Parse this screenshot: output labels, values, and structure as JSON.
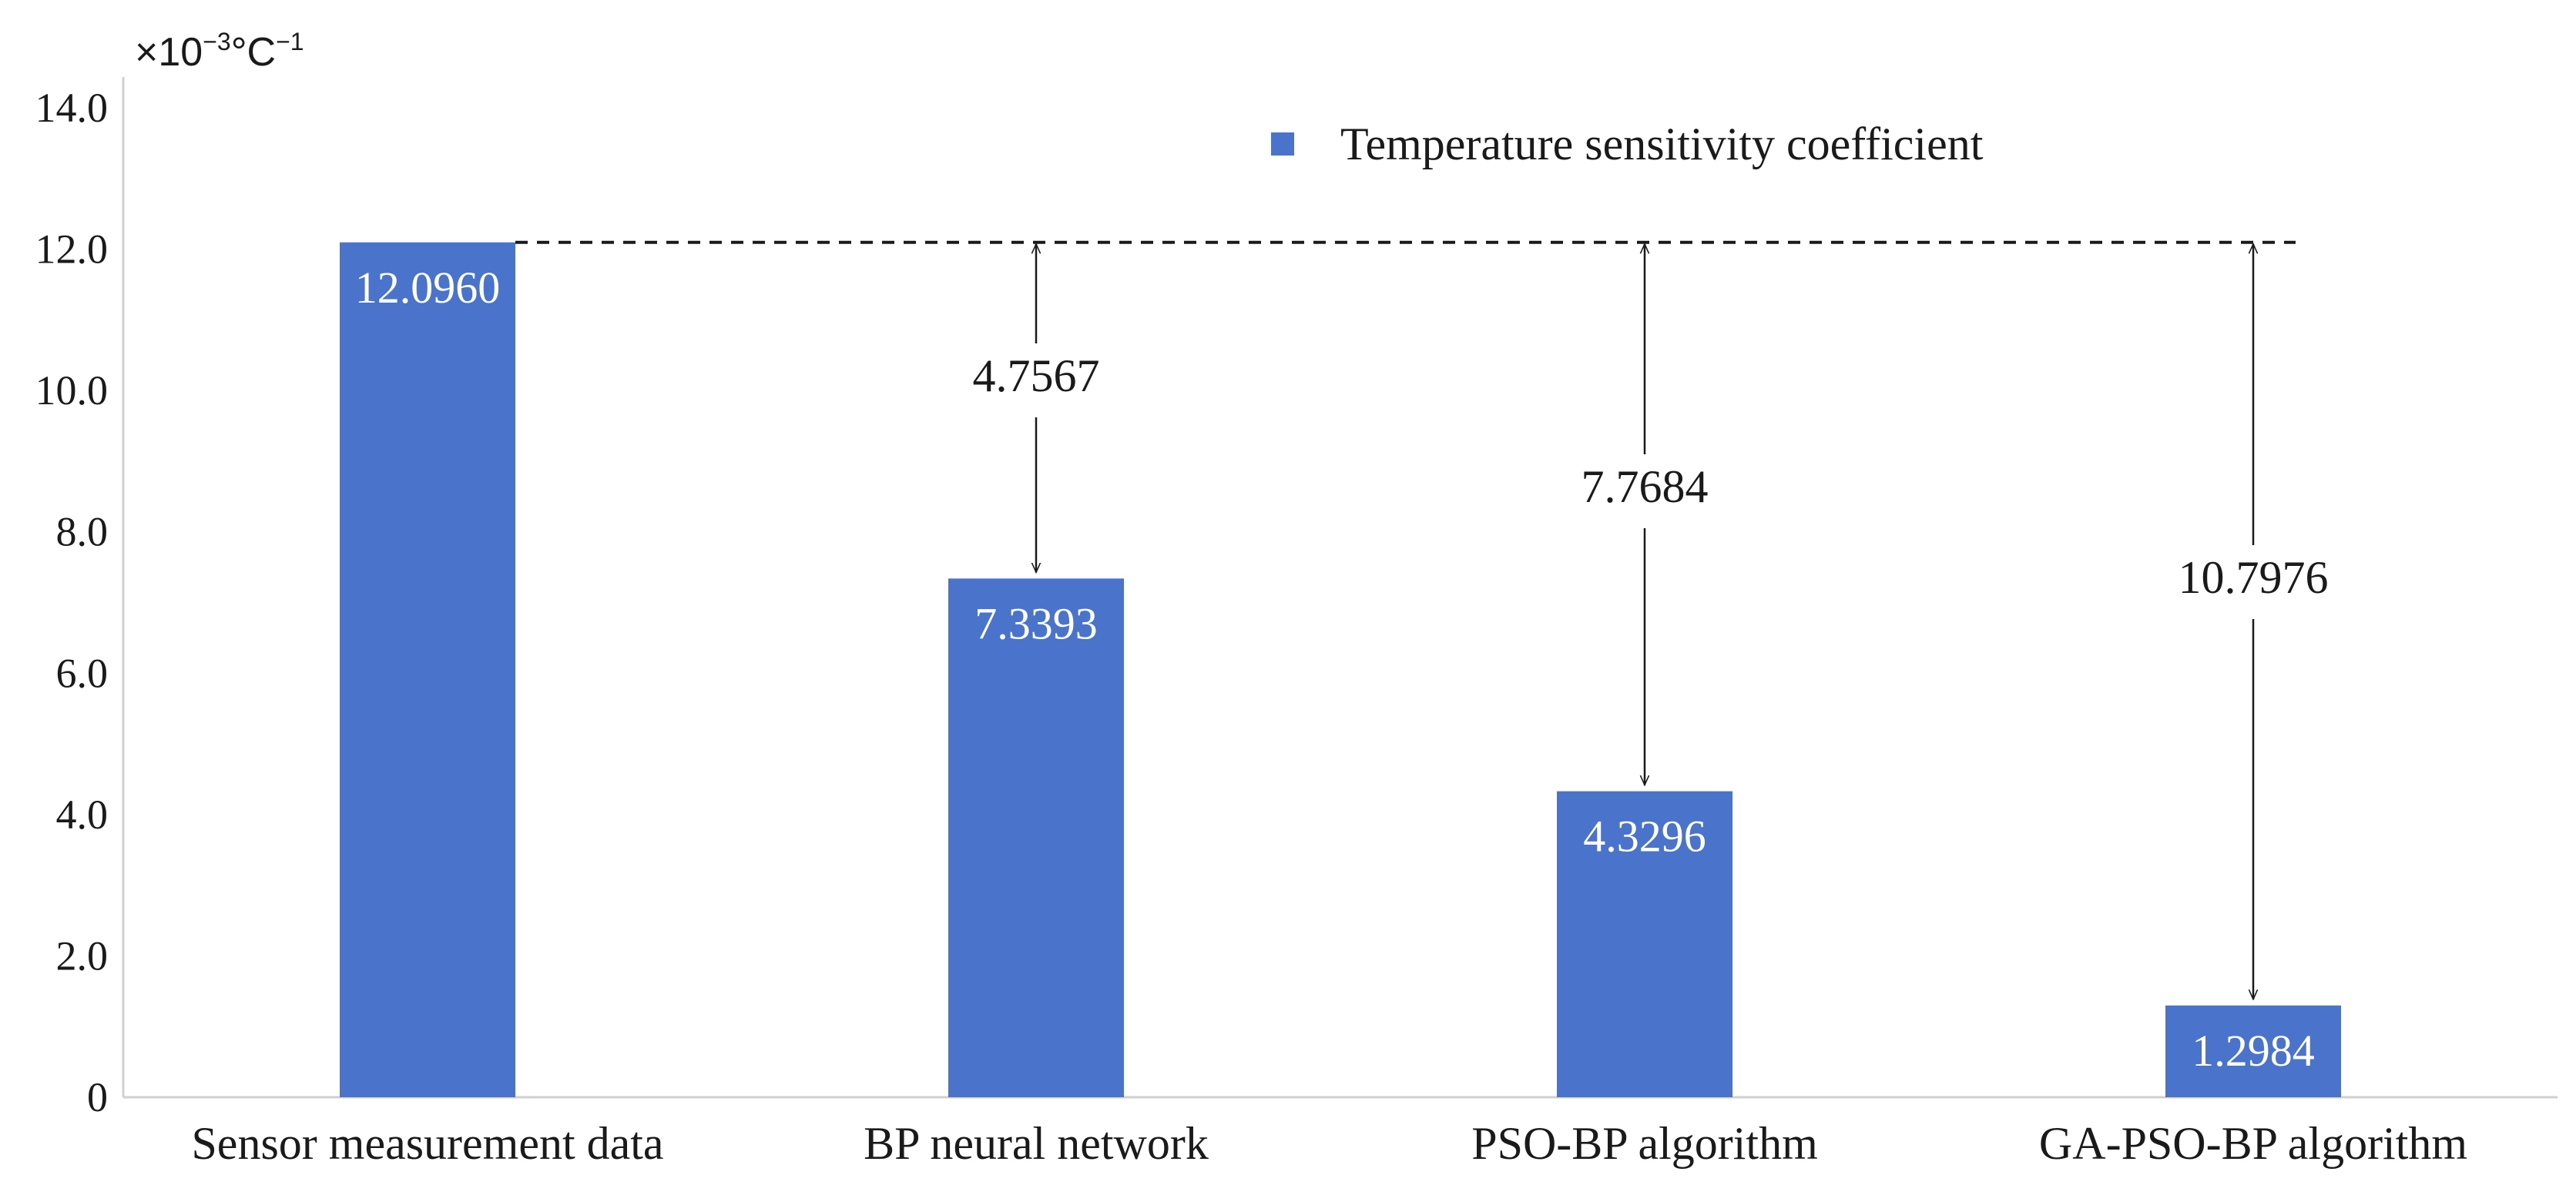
{
  "chart_data": {
    "type": "bar",
    "title": "",
    "xlabel": "",
    "ylabel": "",
    "y_unit": {
      "prefix": "×10",
      "exp1": "−3",
      "mid": "°C",
      "exp2": "−1"
    },
    "ylim": [
      0,
      14
    ],
    "yticks": [
      0,
      2,
      4,
      6,
      8,
      10,
      12,
      14
    ],
    "ytick_labels": [
      "0",
      "2.0",
      "4.0",
      "6.0",
      "8.0",
      "10.0",
      "12.0",
      "14.0"
    ],
    "categories": [
      "Sensor measurement data",
      "BP neural network",
      "PSO-BP algorithm",
      "GA-PSO-BP algorithm"
    ],
    "series": [
      {
        "name": "Temperature sensitivity coefficient",
        "values": [
          12.096,
          7.3393,
          4.3296,
          1.2984
        ],
        "labels": [
          "12.0960",
          "7.3393",
          "4.3296",
          "1.2984"
        ]
      }
    ],
    "reference_line": {
      "value": 12.096,
      "style": "dashed"
    },
    "differences": [
      {
        "category": "BP neural network",
        "value": 4.7567,
        "label": "4.7567"
      },
      {
        "category": "PSO-BP algorithm",
        "value": 7.7684,
        "label": "7.7684"
      },
      {
        "category": "GA-PSO-BP algorithm",
        "value": 10.7976,
        "label": "10.7976"
      }
    ],
    "legend": {
      "position": "top-center"
    },
    "grid": false
  },
  "colors": {
    "bar": "#4a74cc",
    "axis": "#d0d0d0",
    "text": "#1a1a1a",
    "dash": "#1a1a1a"
  }
}
